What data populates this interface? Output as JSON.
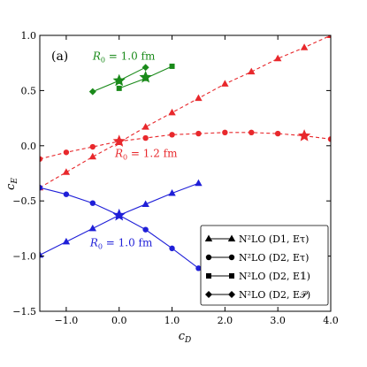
{
  "chart_data": {
    "type": "line",
    "panel_label": "(a)",
    "xlabel": "c_D",
    "ylabel": "c_E",
    "xlim": [
      -1.5,
      4.0
    ],
    "ylim": [
      -1.5,
      1.0
    ],
    "x_ticks": [
      -1.0,
      0.0,
      1.0,
      2.0,
      3.0,
      4.0
    ],
    "y_ticks": [
      -1.5,
      -1.0,
      -0.5,
      0.0,
      0.5,
      1.0
    ],
    "x_tick_labels": [
      "−1.0",
      "0.0",
      "1.0",
      "2.0",
      "3.0",
      "4.0"
    ],
    "y_tick_labels": [
      "−1.5",
      "−1.0",
      "−0.5",
      "0.0",
      "0.5",
      "1.0"
    ],
    "grid": false,
    "legend_position": "bottom-right",
    "colors": {
      "green": "#1a8a1a",
      "red": "#e8282c",
      "blue": "#1f1fd8",
      "black": "#000000"
    },
    "annotations": [
      {
        "text": "R_0 = 1.0 fm",
        "color": "green",
        "at": [
          -0.5,
          0.78
        ]
      },
      {
        "text": "R_0 = 1.2 fm",
        "color": "red",
        "at": [
          -0.08,
          -0.1
        ]
      },
      {
        "text": "R_0 = 1.0 fm",
        "color": "blue",
        "at": [
          -0.55,
          -0.91
        ]
      }
    ],
    "legend": [
      {
        "marker": "triangle",
        "label": "N²LO (D1, Eτ)"
      },
      {
        "marker": "circle",
        "label": "N²LO (D2, Eτ)"
      },
      {
        "marker": "square",
        "label": "N²LO (D2, E𝟙)"
      },
      {
        "marker": "diamond",
        "label": "N²LO (D2, E𝒫)"
      }
    ],
    "series": [
      {
        "marker": "triangle",
        "color": "red",
        "dashed": true,
        "x": [
          -1.5,
          -1.0,
          -0.5,
          0.0,
          0.5,
          1.0,
          1.5,
          2.0,
          2.5,
          3.0,
          3.5,
          4.0
        ],
        "y": [
          -0.38,
          -0.24,
          -0.1,
          0.03,
          0.17,
          0.3,
          0.43,
          0.56,
          0.67,
          0.79,
          0.89,
          1.0
        ]
      },
      {
        "marker": "circle",
        "color": "red",
        "dashed": true,
        "x": [
          -1.5,
          -1.0,
          -0.5,
          0.0,
          0.5,
          1.0,
          1.5,
          2.0,
          2.5,
          3.0,
          3.5,
          4.0
        ],
        "y": [
          -0.12,
          -0.06,
          -0.01,
          0.04,
          0.07,
          0.1,
          0.11,
          0.12,
          0.12,
          0.11,
          0.09,
          0.06
        ]
      },
      {
        "marker": "triangle",
        "color": "blue",
        "dashed": false,
        "x": [
          -1.5,
          -1.0,
          -0.5,
          0.0,
          0.5,
          1.0,
          1.5
        ],
        "y": [
          -0.99,
          -0.87,
          -0.75,
          -0.63,
          -0.53,
          -0.43,
          -0.34
        ]
      },
      {
        "marker": "circle",
        "color": "blue",
        "dashed": false,
        "x": [
          -1.5,
          -1.0,
          -0.5,
          0.0,
          0.5,
          1.0,
          1.5
        ],
        "y": [
          -0.38,
          -0.44,
          -0.52,
          -0.63,
          -0.76,
          -0.93,
          -1.11
        ]
      },
      {
        "marker": "square",
        "color": "green",
        "dashed": false,
        "x": [
          0.0,
          0.5,
          1.0
        ],
        "y": [
          0.52,
          0.61,
          0.72
        ]
      },
      {
        "marker": "diamond",
        "color": "green",
        "dashed": false,
        "x": [
          -0.5,
          0.0,
          0.5
        ],
        "y": [
          0.49,
          0.59,
          0.71
        ]
      }
    ],
    "stars": [
      {
        "color": "red",
        "x": 0.0,
        "y": 0.04
      },
      {
        "color": "red",
        "x": 3.5,
        "y": 0.09
      },
      {
        "color": "blue",
        "x": 0.0,
        "y": -0.63
      },
      {
        "color": "green",
        "x": 0.0,
        "y": 0.59
      },
      {
        "color": "green",
        "x": 0.5,
        "y": 0.62
      }
    ]
  }
}
